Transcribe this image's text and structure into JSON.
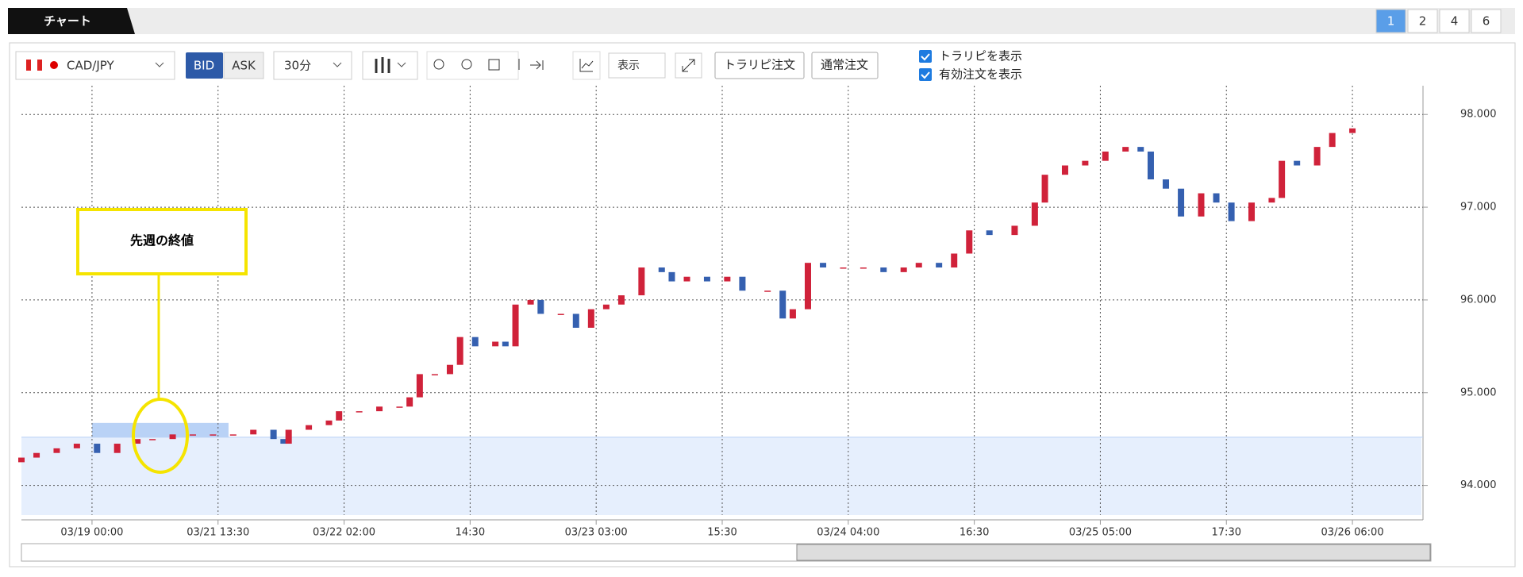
{
  "tab": "チャート",
  "pages": [
    "1",
    "2",
    "4",
    "6"
  ],
  "toolbar": {
    "pair": "CAD/JPY",
    "bid": "BID",
    "ask": "ASK",
    "interval": "30分",
    "display": "表示",
    "trarepi_order": "トラリピ注文",
    "normal_order": "通常注文",
    "checkboxes": [
      "トラリピを表示",
      "有効注文を表示"
    ]
  },
  "chart_data": {
    "type": "candlestick",
    "x": [
      -14,
      -11,
      -7,
      -3,
      1,
      5,
      9,
      12,
      16,
      20,
      24,
      28,
      32,
      36,
      38,
      39,
      43,
      47,
      49,
      53,
      57,
      61,
      63,
      65,
      68,
      71,
      73,
      76,
      80,
      82,
      84,
      87,
      89,
      93,
      96,
      99,
      102,
      105,
      109,
      113,
      115,
      118,
      122,
      126,
      129,
      134,
      137,
      139,
      142,
      145,
      149,
      153,
      157,
      161,
      164,
      168,
      171,
      174,
      178,
      183,
      187,
      189,
      193,
      197,
      201,
      205,
      208,
      210,
      213,
      216,
      220,
      223,
      226,
      230,
      234,
      236,
      239,
      243,
      246,
      250
    ],
    "open": [
      94.25,
      94.3,
      94.35,
      94.4,
      94.45,
      94.35,
      94.45,
      94.5,
      94.5,
      94.55,
      94.55,
      94.55,
      94.55,
      94.6,
      94.5,
      94.45,
      94.6,
      94.65,
      94.7,
      94.8,
      94.8,
      94.85,
      94.85,
      94.95,
      95.2,
      95.2,
      95.3,
      95.6,
      95.5,
      95.55,
      95.5,
      95.95,
      96.0,
      95.85,
      95.85,
      95.7,
      95.9,
      95.95,
      96.05,
      96.35,
      96.3,
      96.2,
      96.25,
      96.2,
      96.25,
      96.1,
      96.1,
      95.8,
      95.9,
      96.4,
      96.35,
      96.35,
      96.35,
      96.3,
      96.35,
      96.4,
      96.35,
      96.5,
      96.75,
      96.7,
      96.8,
      97.05,
      97.35,
      97.45,
      97.5,
      97.6,
      97.65,
      97.6,
      97.3,
      97.2,
      96.9,
      97.15,
      97.05,
      96.85,
      97.05,
      97.1,
      97.5,
      97.45,
      97.65,
      97.8
    ],
    "close": [
      94.3,
      94.35,
      94.4,
      94.45,
      94.35,
      94.45,
      94.5,
      94.5,
      94.55,
      94.55,
      94.55,
      94.55,
      94.6,
      94.5,
      94.45,
      94.6,
      94.65,
      94.7,
      94.8,
      94.8,
      94.85,
      94.85,
      94.95,
      95.2,
      95.2,
      95.3,
      95.6,
      95.5,
      95.55,
      95.5,
      95.95,
      96.0,
      95.85,
      95.85,
      95.7,
      95.9,
      95.95,
      96.05,
      96.35,
      96.3,
      96.2,
      96.25,
      96.2,
      96.25,
      96.1,
      96.1,
      95.8,
      95.9,
      96.4,
      96.35,
      96.35,
      96.35,
      96.3,
      96.35,
      96.4,
      96.35,
      96.5,
      96.75,
      96.7,
      96.8,
      97.05,
      97.35,
      97.45,
      97.5,
      97.6,
      97.65,
      97.6,
      97.3,
      97.2,
      96.9,
      97.15,
      97.05,
      96.85,
      97.05,
      97.1,
      97.5,
      97.45,
      97.65,
      97.8,
      97.85
    ],
    "up_color": "#d0223a",
    "down_color": "#3560b0",
    "xlim": [
      -14,
      264
    ],
    "xticks": [
      {
        "value": 0,
        "label": "03/19 00:00"
      },
      {
        "value": 25,
        "label": "03/21 13:30"
      },
      {
        "value": 50,
        "label": "03/22 02:00"
      },
      {
        "value": 75,
        "label": "14:30"
      },
      {
        "value": 100,
        "label": "03/23 03:00"
      },
      {
        "value": 125,
        "label": "15:30"
      },
      {
        "value": 150,
        "label": "03/24 04:00"
      },
      {
        "value": 175,
        "label": "16:30"
      },
      {
        "value": 200,
        "label": "03/25 05:00"
      },
      {
        "value": 225,
        "label": "17:30"
      },
      {
        "value": 250,
        "label": "03/26 06:00"
      }
    ],
    "ylim": [
      93.68,
      98.31
    ],
    "yticks": [
      {
        "value": 94,
        "label": "94.000"
      },
      {
        "value": 95,
        "label": "95.000"
      },
      {
        "value": 96,
        "label": "96.000"
      },
      {
        "value": 97,
        "label": "97.000"
      },
      {
        "value": 98,
        "label": "98.000"
      }
    ],
    "grid": true,
    "annotation": "先週の終値",
    "last_close": 94.52
  }
}
